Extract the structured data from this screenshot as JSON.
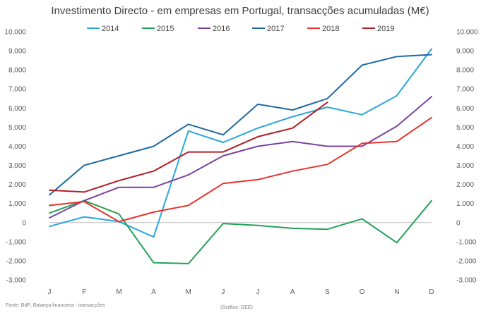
{
  "chart_data": {
    "type": "line",
    "title": "Investimento Directo - em empresas em Portugal, transacções acumuladas (M€)",
    "categories": [
      "J",
      "F",
      "M",
      "A",
      "M",
      "J",
      "J",
      "A",
      "S",
      "O",
      "N",
      "D"
    ],
    "ylim": [
      -3000,
      10000
    ],
    "yticks": [
      -3000,
      -2000,
      -1000,
      0,
      1000,
      2000,
      3000,
      4000,
      5000,
      6000,
      7000,
      8000,
      9000,
      10000
    ],
    "ytick_labels": [
      "-3.000",
      "-2.000",
      "-1.000",
      "0",
      "1.000",
      "2.000",
      "3.000",
      "4.000",
      "5.000",
      "6.000",
      "7.000",
      "8.000",
      "9.000",
      "10.000"
    ],
    "ytick_labels_left": [
      "-3,000",
      "-2,000",
      "-1,000",
      "0",
      "1,000",
      "2,000",
      "3,000",
      "4,000",
      "5,000",
      "6,000",
      "7,000",
      "8,000",
      "9,000",
      "10,000"
    ],
    "legend_position": "top",
    "grid": false,
    "series": [
      {
        "name": "2014",
        "color": "#2aa7d9",
        "values": [
          -200,
          300,
          50,
          -750,
          4800,
          4200,
          4950,
          5550,
          6050,
          5650,
          6650,
          9100
        ]
      },
      {
        "name": "2015",
        "color": "#21a154",
        "values": [
          500,
          1150,
          450,
          -2100,
          -2150,
          -50,
          -150,
          -300,
          -350,
          200,
          -1050,
          1150
        ]
      },
      {
        "name": "2016",
        "color": "#7a42a0",
        "values": [
          250,
          1150,
          1850,
          1850,
          2500,
          3500,
          4000,
          4250,
          4000,
          4000,
          5050,
          6600
        ]
      },
      {
        "name": "2017",
        "color": "#1c6aa6",
        "values": [
          1450,
          3000,
          3500,
          4000,
          5150,
          4600,
          6200,
          5900,
          6500,
          8250,
          8700,
          8800
        ]
      },
      {
        "name": "2018",
        "color": "#e8312d",
        "values": [
          900,
          1100,
          50,
          550,
          900,
          2050,
          2250,
          2700,
          3050,
          4150,
          4250,
          5500
        ]
      },
      {
        "name": "2019",
        "color": "#b01e24",
        "values": [
          1700,
          1600,
          2200,
          2700,
          3700,
          3700,
          4500,
          4950,
          6300,
          null,
          null,
          null
        ]
      }
    ]
  },
  "footer": {
    "source": "Fonte: BdP; Balança financeira - transacções",
    "credit": "(Gráfico: GEE)"
  }
}
